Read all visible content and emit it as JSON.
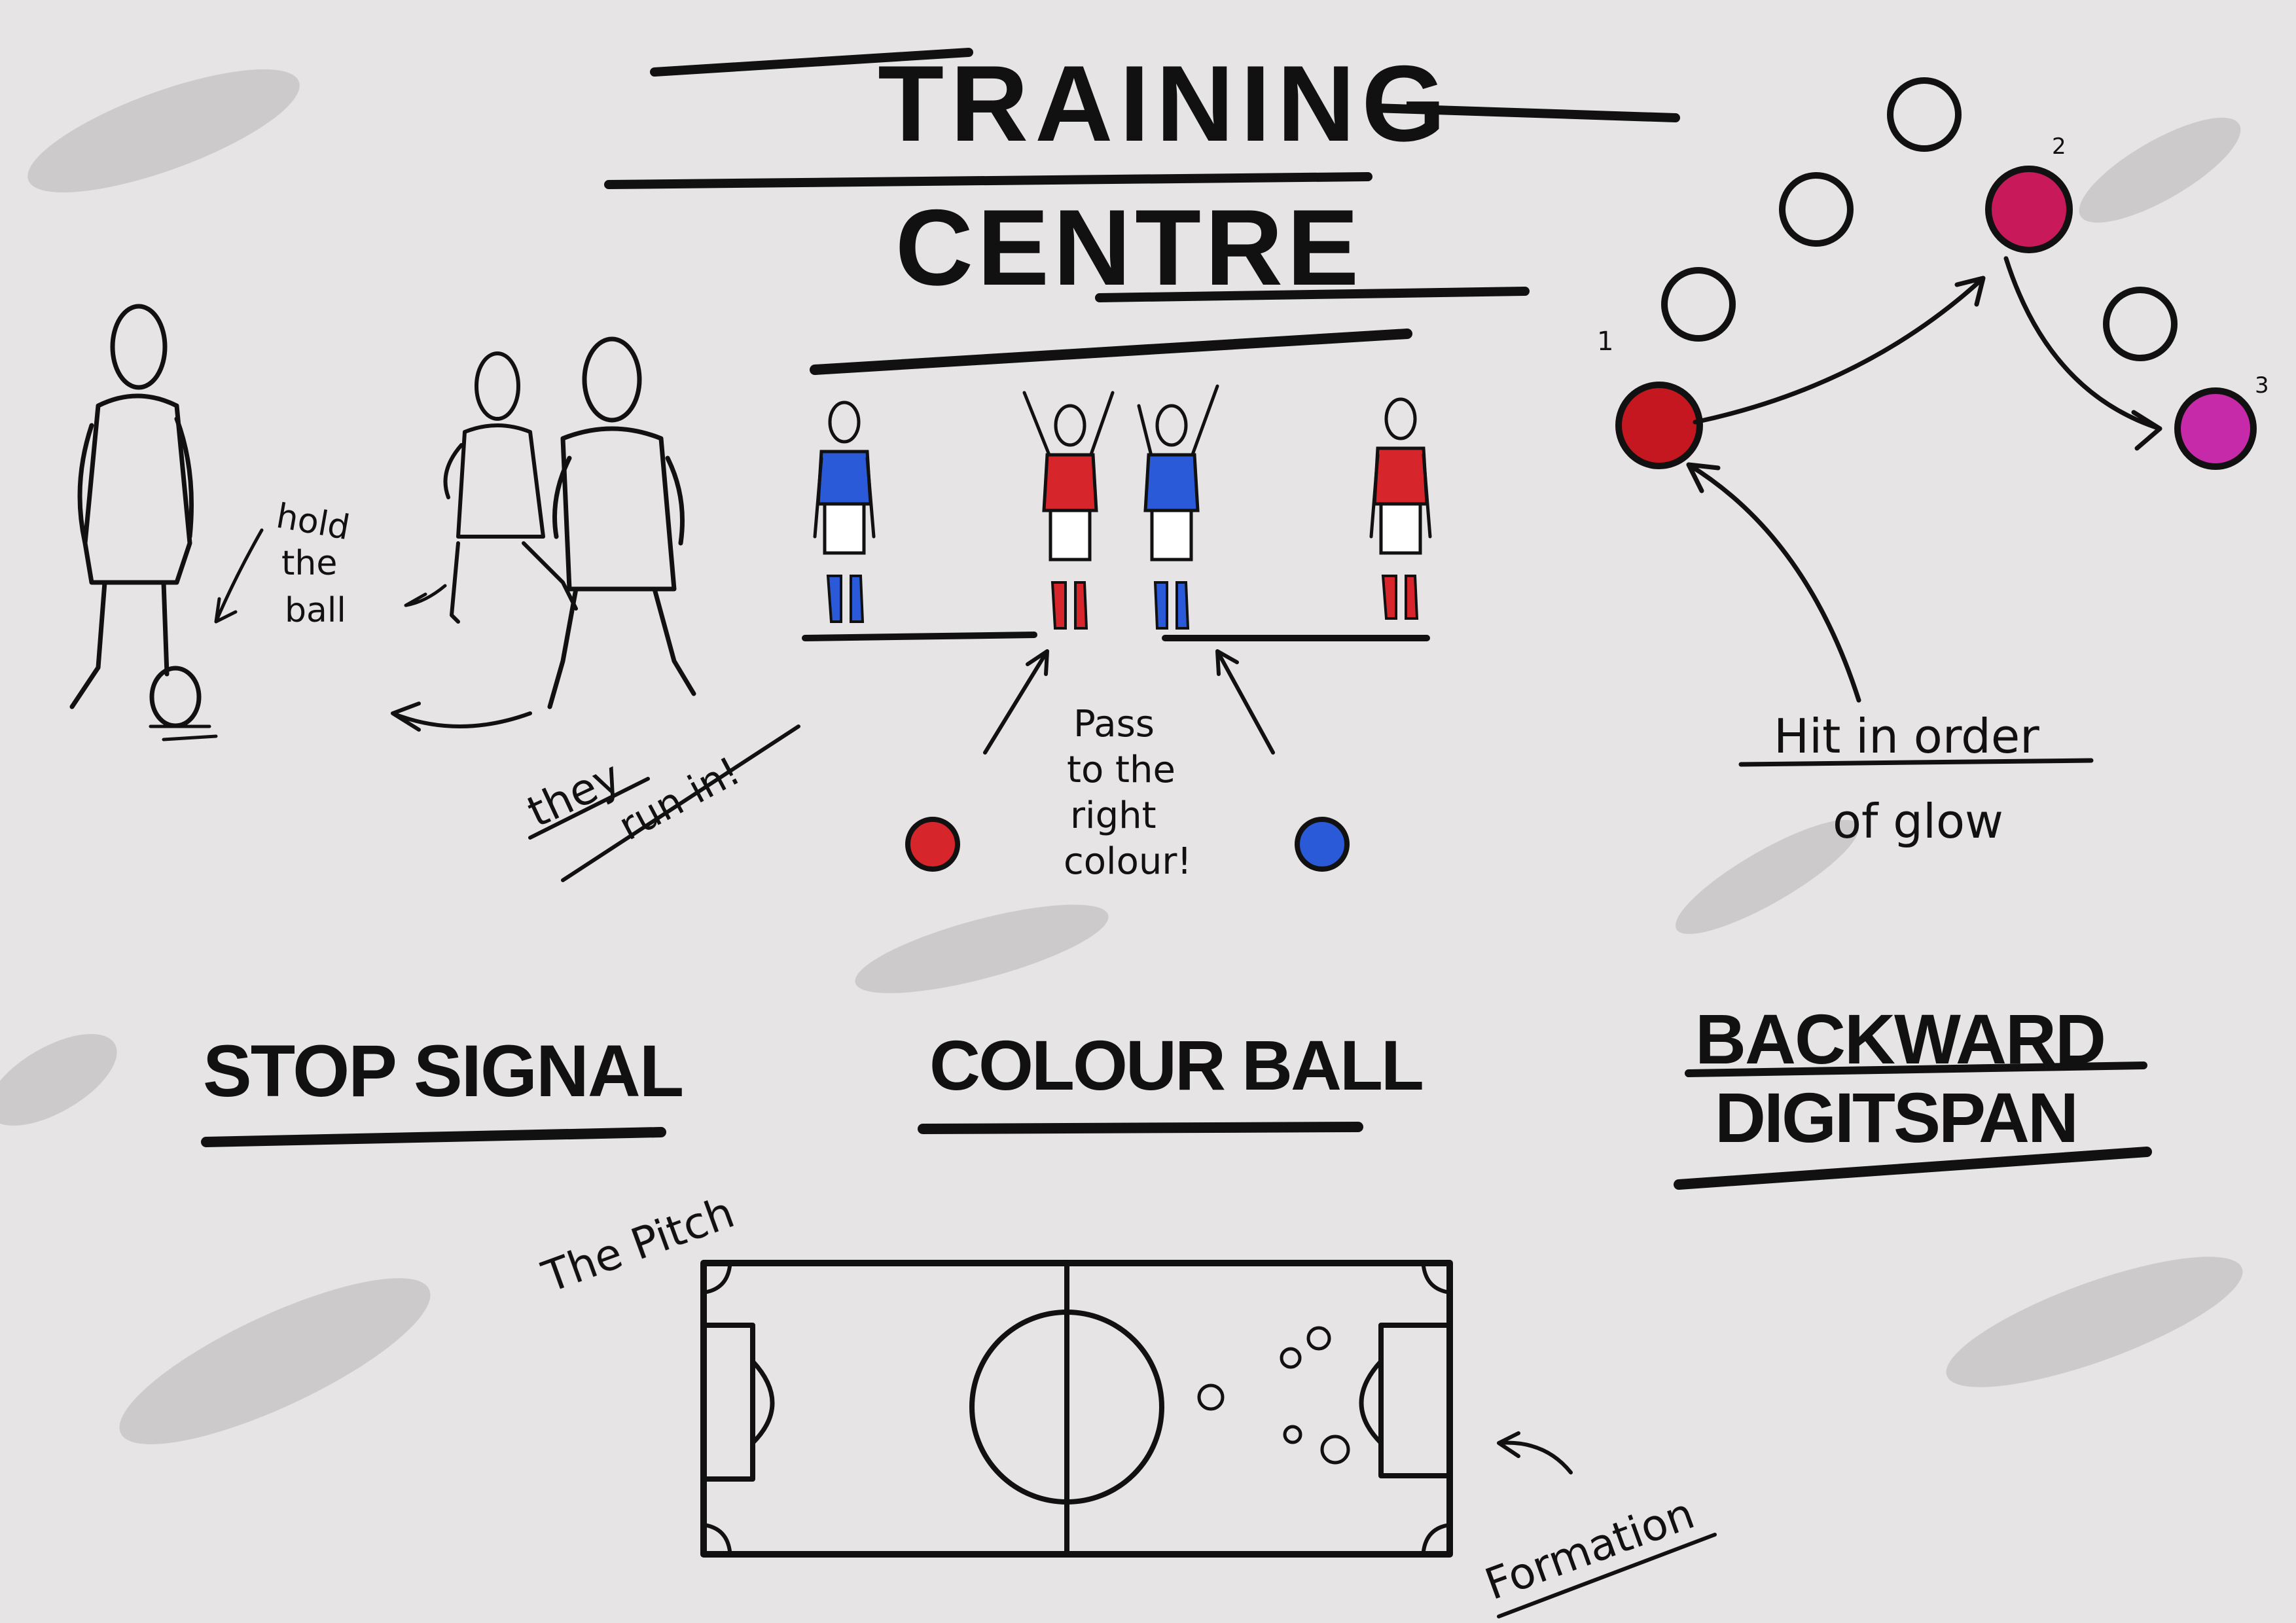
{
  "title": {
    "line1": "TRAINING",
    "line2": "CENTRE"
  },
  "sections": {
    "stop_signal": {
      "label": "STOP SIGNAL",
      "note_hold": [
        "hold",
        "the",
        "ball"
      ],
      "note_run": [
        "they",
        "run in!"
      ]
    },
    "colour_ball": {
      "label": "COLOUR BALL",
      "note": [
        "Pass",
        "to the",
        "right",
        "colour!"
      ]
    },
    "backward_digitspan": {
      "label_line1": "BACKWARD",
      "label_line2": "DIGITSPAN",
      "note": [
        "Hit in order",
        "of glow"
      ],
      "order_numbers": [
        "1",
        "2",
        "3"
      ]
    },
    "pitch": {
      "label": "The Pitch",
      "formation_label": "Formation"
    }
  },
  "colors": {
    "background": "#e6e4e5",
    "ink": "#111111",
    "team_red": "#d6262c",
    "team_blue": "#2a5ad8",
    "glow_1": "#c4171f",
    "glow_2": "#c8195a",
    "glow_3": "#c62aa8"
  },
  "icons": [
    "player-figure-icon",
    "football-icon",
    "target-circle-icon",
    "arrow-icon"
  ]
}
